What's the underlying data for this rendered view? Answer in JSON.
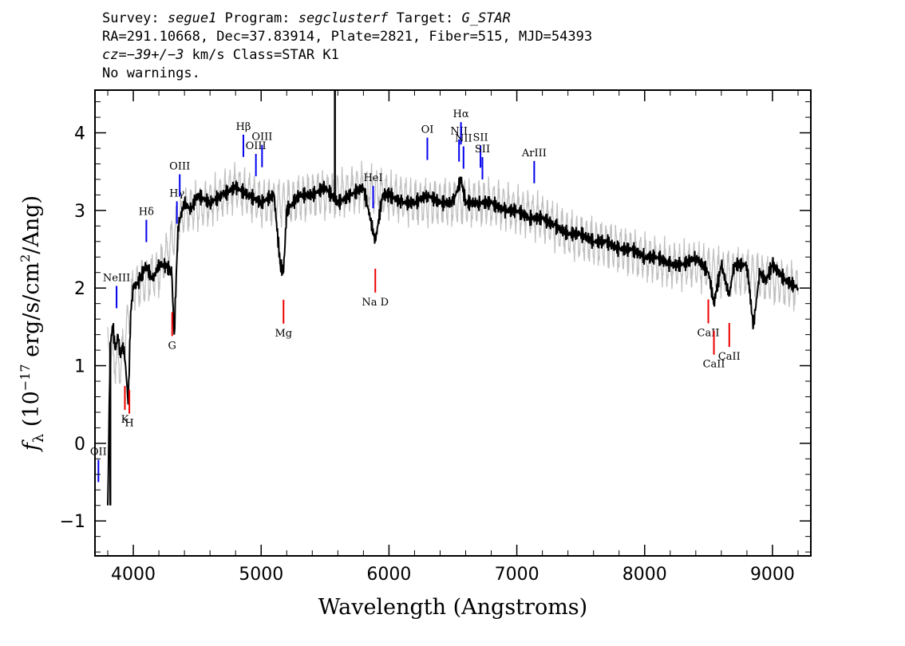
{
  "header": {
    "survey_label": "Survey:",
    "survey": "segue1",
    "program_label": "Program:",
    "program": "segclusterf",
    "target_label": "Target:",
    "target": "G_STAR",
    "line2": "RA=291.10668, Dec=37.83914, Plate=2821, Fiber=515, MJD=54393",
    "cz_label": "cz=",
    "cz_value": "−39+/−3",
    "cz_rest": " km/s Class=STAR K1",
    "line4": "No warnings."
  },
  "colors": {
    "flux": "#000000",
    "error": "#c0c0c0",
    "emission": "#0000ee",
    "absorption": "#ee0000"
  },
  "chart_data": {
    "type": "line",
    "xlabel": "Wavelength (Angstroms)",
    "ylabel_parts": {
      "symbol": "f",
      "sub": "λ",
      "pre": " (10",
      "exp": "−17",
      "mid": " erg/s/cm",
      "exp2": "2",
      "post": "/Ang)"
    },
    "xlim": [
      3700,
      9300
    ],
    "ylim": [
      -1.45,
      4.55
    ],
    "xticks": [
      4000,
      5000,
      6000,
      7000,
      8000,
      9000
    ],
    "yticks": [
      -1,
      0,
      1,
      2,
      3,
      4
    ],
    "xtick_labels": [
      "4000",
      "5000",
      "6000",
      "7000",
      "8000",
      "9000"
    ],
    "ytick_labels": [
      "−1",
      "0",
      "1",
      "2",
      "3",
      "4"
    ],
    "series": [
      {
        "role": "flux",
        "x": [
          3800,
          3820,
          3840,
          3860,
          3880,
          3900,
          3920,
          3940,
          3960,
          3980,
          4000,
          4050,
          4100,
          4150,
          4200,
          4250,
          4300,
          4320,
          4350,
          4400,
          4450,
          4500,
          4600,
          4700,
          4800,
          4900,
          5000,
          5100,
          5150,
          5175,
          5200,
          5300,
          5400,
          5500,
          5600,
          5700,
          5800,
          5893,
          5950,
          6000,
          6100,
          6200,
          6300,
          6400,
          6500,
          6563,
          6600,
          6700,
          6800,
          6900,
          7000,
          7100,
          7200,
          7300,
          7400,
          7500,
          7600,
          7700,
          7800,
          7900,
          8000,
          8100,
          8200,
          8300,
          8400,
          8500,
          8542,
          8600,
          8662,
          8700,
          8800,
          8850,
          8900,
          8950,
          9000,
          9100,
          9200
        ],
        "y": [
          -0.8,
          1.3,
          1.5,
          1.2,
          1.4,
          1.1,
          1.3,
          1.0,
          0.5,
          1.7,
          2.0,
          2.1,
          2.3,
          2.1,
          2.3,
          2.3,
          2.2,
          1.4,
          2.8,
          3.1,
          3.0,
          3.2,
          3.1,
          3.2,
          3.3,
          3.2,
          3.1,
          3.2,
          2.3,
          2.2,
          3.0,
          3.2,
          3.2,
          3.3,
          3.1,
          3.2,
          3.3,
          2.6,
          3.2,
          3.2,
          3.1,
          3.1,
          3.2,
          3.1,
          3.1,
          3.4,
          3.1,
          3.1,
          3.1,
          3.0,
          3.0,
          2.9,
          2.9,
          2.8,
          2.7,
          2.7,
          2.6,
          2.6,
          2.5,
          2.5,
          2.4,
          2.4,
          2.3,
          2.3,
          2.4,
          2.2,
          1.8,
          2.3,
          1.9,
          2.3,
          2.3,
          1.5,
          2.2,
          2.1,
          2.3,
          2.1,
          2.0
        ]
      },
      {
        "role": "error",
        "x": [
          3800,
          3900,
          4000,
          4200,
          4400,
          4600,
          4800,
          5000,
          5200,
          5400,
          5600,
          5800,
          6000,
          6200,
          6400,
          6600,
          6800,
          7000,
          7200,
          7400,
          7600,
          7800,
          8000,
          8200,
          8400,
          8600,
          8800,
          9000,
          9200
        ],
        "y": [
          1.2,
          1.0,
          2.0,
          2.2,
          3.0,
          3.1,
          3.3,
          3.1,
          3.1,
          3.2,
          3.2,
          3.3,
          3.2,
          3.1,
          3.1,
          3.1,
          3.1,
          3.0,
          2.9,
          2.7,
          2.6,
          2.5,
          2.4,
          2.3,
          2.3,
          2.2,
          2.2,
          2.1,
          2.0
        ]
      }
    ],
    "spikes": [
      {
        "x": 5577,
        "y": 4.55
      },
      {
        "x": 3820,
        "y": -0.8
      }
    ],
    "emission_lines": [
      {
        "label": "OII",
        "x": 3727
      },
      {
        "label": "NeIII",
        "x": 3869
      },
      {
        "label": "Hδ",
        "x": 4102
      },
      {
        "label": "Hγ",
        "x": 4341
      },
      {
        "label": "OIII",
        "x": 4363
      },
      {
        "label": "Hβ",
        "x": 4861
      },
      {
        "label": "OIII",
        "x": 4959
      },
      {
        "label": "OIII",
        "x": 5007
      },
      {
        "label": "HeI",
        "x": 5876
      },
      {
        "label": "OI",
        "x": 6300
      },
      {
        "label": "NII",
        "x": 6548
      },
      {
        "label": "Hα",
        "x": 6563
      },
      {
        "label": "NII",
        "x": 6583
      },
      {
        "label": "SII",
        "x": 6716
      },
      {
        "label": "SII",
        "x": 6731
      },
      {
        "label": "ArIII",
        "x": 7136
      }
    ],
    "absorption_lines": [
      {
        "label": "K",
        "x": 3934
      },
      {
        "label": "H",
        "x": 3969
      },
      {
        "label": "G",
        "x": 4304
      },
      {
        "label": "Mg",
        "x": 5175
      },
      {
        "label": "Na D",
        "x": 5893
      },
      {
        "label": "CaII",
        "x": 8498
      },
      {
        "label": "CaII",
        "x": 8542
      },
      {
        "label": "CaII",
        "x": 8662
      }
    ]
  }
}
